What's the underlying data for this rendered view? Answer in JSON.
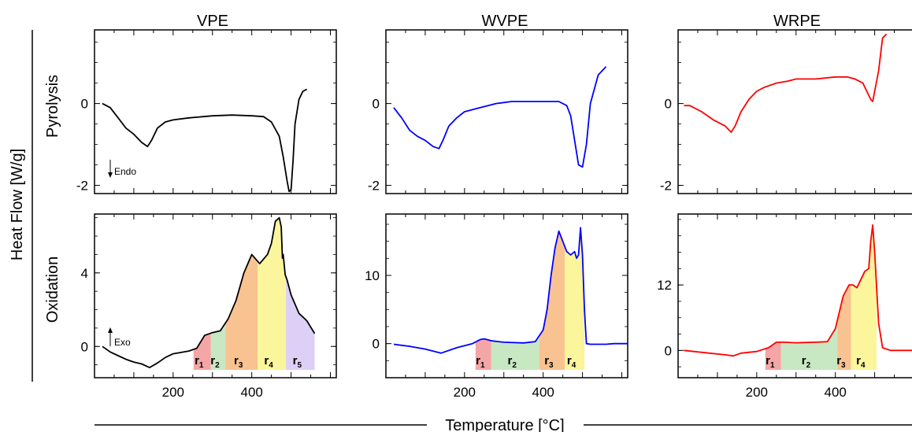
{
  "figure": {
    "ylabel": "Heat Flow [W/g]",
    "xlabel": "Temperature [°C]",
    "row_labels": [
      "Pyrolysis",
      "Oxidation"
    ],
    "col_titles": [
      "VPE",
      "WVPE",
      "WRPE"
    ],
    "endo_note": "Endo",
    "exo_note": "Exo"
  },
  "chart_data": [
    {
      "type": "line",
      "sample": "VPE",
      "mode": "Pyrolysis",
      "color": "#000000",
      "title": "VPE",
      "ylabel": "Pyrolysis",
      "xlim": [
        0,
        615
      ],
      "ylim": [
        -2.2,
        1.8
      ],
      "yticks": [
        0,
        -2
      ],
      "ytick_labels": [
        "0",
        "-2"
      ],
      "x": [
        20,
        40,
        60,
        80,
        100,
        120,
        135,
        145,
        160,
        180,
        200,
        240,
        300,
        350,
        400,
        430,
        450,
        470,
        480,
        490,
        495,
        500,
        505,
        510,
        520,
        530,
        540
      ],
      "y": [
        0,
        -0.1,
        -0.35,
        -0.6,
        -0.75,
        -0.95,
        -1.05,
        -0.9,
        -0.6,
        -0.45,
        -0.4,
        -0.35,
        -0.3,
        -0.28,
        -0.3,
        -0.32,
        -0.45,
        -0.8,
        -1.3,
        -1.9,
        -2.15,
        -2.1,
        -1.4,
        -0.5,
        0.1,
        0.3,
        0.35
      ]
    },
    {
      "type": "line",
      "sample": "VPE",
      "mode": "Oxidation",
      "color": "#000000",
      "title": "",
      "ylabel": "Oxidation",
      "xlim": [
        0,
        615
      ],
      "ylim": [
        -1.7,
        7.2
      ],
      "yticks": [
        0,
        4
      ],
      "ytick_labels": [
        "0",
        "4"
      ],
      "xticks": [
        200,
        400
      ],
      "xtick_labels": [
        "200",
        "400"
      ],
      "x": [
        20,
        40,
        60,
        80,
        100,
        120,
        140,
        160,
        180,
        200,
        240,
        260,
        280,
        300,
        320,
        340,
        360,
        380,
        400,
        420,
        440,
        450,
        460,
        470,
        475,
        478,
        480,
        485,
        490,
        500,
        520,
        540,
        560
      ],
      "y": [
        0,
        -0.3,
        -0.5,
        -0.7,
        -0.85,
        -0.95,
        -1.15,
        -0.9,
        -0.6,
        -0.4,
        -0.25,
        -0.1,
        0.6,
        0.75,
        0.85,
        1.5,
        2.5,
        4.0,
        5.0,
        4.5,
        5.0,
        5.6,
        6.8,
        7.0,
        6.5,
        4.8,
        5.0,
        3.9,
        3.6,
        2.8,
        1.8,
        1.4,
        0.7
      ],
      "regions": [
        {
          "label": "r",
          "sub": "1",
          "x0": 252,
          "x1": 296,
          "color": "#f4a6a6"
        },
        {
          "label": "r",
          "sub": "2",
          "x0": 296,
          "x1": 333,
          "color": "#c7e8c2"
        },
        {
          "label": "r",
          "sub": "3",
          "x0": 333,
          "x1": 415,
          "color": "#f9c291"
        },
        {
          "label": "r",
          "sub": "4",
          "x0": 415,
          "x1": 487,
          "color": "#fbf59c"
        },
        {
          "label": "r",
          "sub": "5",
          "x0": 487,
          "x1": 560,
          "color": "#ddd0f6"
        }
      ]
    },
    {
      "type": "line",
      "sample": "WVPE",
      "mode": "Pyrolysis",
      "color": "#0000ff",
      "title": "WVPE",
      "xlim": [
        0,
        615
      ],
      "ylim": [
        -2.2,
        1.8
      ],
      "yticks": [
        0,
        -2
      ],
      "ytick_labels": [
        "0",
        "-2"
      ],
      "x": [
        20,
        40,
        60,
        80,
        100,
        120,
        135,
        145,
        160,
        180,
        200,
        240,
        280,
        320,
        360,
        400,
        420,
        440,
        460,
        470,
        480,
        490,
        500,
        510,
        520,
        540,
        560
      ],
      "y": [
        -0.1,
        -0.35,
        -0.65,
        -0.8,
        -0.9,
        -1.05,
        -1.1,
        -0.9,
        -0.55,
        -0.35,
        -0.2,
        -0.1,
        0.0,
        0.05,
        0.05,
        0.05,
        0.05,
        0.05,
        -0.05,
        -0.3,
        -0.9,
        -1.5,
        -1.55,
        -1.0,
        0.0,
        0.7,
        0.9
      ]
    },
    {
      "type": "line",
      "sample": "WVPE",
      "mode": "Oxidation",
      "color": "#0000ff",
      "title": "",
      "xlim": [
        0,
        615
      ],
      "ylim": [
        -5,
        19
      ],
      "yticks": [
        0,
        10
      ],
      "ytick_labels": [
        "0",
        "10"
      ],
      "xticks": [
        200,
        400
      ],
      "xtick_labels": [
        "200",
        "400"
      ],
      "x": [
        20,
        60,
        100,
        140,
        180,
        220,
        240,
        250,
        270,
        300,
        350,
        380,
        400,
        410,
        420,
        430,
        440,
        450,
        460,
        470,
        480,
        485,
        490,
        495,
        500,
        505,
        510,
        520,
        540,
        560,
        580,
        615
      ],
      "y": [
        -0.1,
        -0.4,
        -0.8,
        -1.4,
        -0.6,
        0.0,
        0.6,
        0.7,
        0.4,
        0.2,
        0.1,
        0.3,
        2.0,
        5.0,
        10.0,
        14.0,
        16.5,
        15.0,
        13.5,
        13.0,
        13.5,
        12.5,
        13.0,
        17.0,
        13.0,
        5.0,
        0.0,
        -0.1,
        -0.1,
        -0.1,
        0.0,
        0.0
      ],
      "regions": [
        {
          "label": "r",
          "sub": "1",
          "x0": 228,
          "x1": 268,
          "color": "#f4a6a6"
        },
        {
          "label": "r",
          "sub": "2",
          "x0": 268,
          "x1": 390,
          "color": "#c7e8c2"
        },
        {
          "label": "r",
          "sub": "3",
          "x0": 390,
          "x1": 455,
          "color": "#f9c291"
        },
        {
          "label": "r",
          "sub": "4",
          "x0": 455,
          "x1": 505,
          "color": "#fbf59c"
        }
      ]
    },
    {
      "type": "line",
      "sample": "WRPE",
      "mode": "Pyrolysis",
      "color": "#ff0000",
      "title": "WRPE",
      "xlim": [
        0,
        615
      ],
      "ylim": [
        -2.2,
        1.8
      ],
      "yticks": [
        0,
        -2
      ],
      "ytick_labels": [
        "0",
        "-2"
      ],
      "x": [
        15,
        30,
        60,
        90,
        120,
        135,
        145,
        160,
        180,
        200,
        220,
        250,
        280,
        300,
        350,
        400,
        430,
        450,
        470,
        480,
        490,
        495,
        500,
        510,
        520,
        530
      ],
      "y": [
        -0.05,
        -0.05,
        -0.2,
        -0.4,
        -0.55,
        -0.7,
        -0.55,
        -0.2,
        0.1,
        0.3,
        0.4,
        0.5,
        0.55,
        0.6,
        0.6,
        0.65,
        0.65,
        0.6,
        0.5,
        0.3,
        0.1,
        0.05,
        0.3,
        0.8,
        1.6,
        1.7
      ]
    },
    {
      "type": "line",
      "sample": "WRPE",
      "mode": "Oxidation",
      "color": "#ff0000",
      "title": "",
      "xlim": [
        0,
        615
      ],
      "ylim": [
        -5,
        25
      ],
      "yticks": [
        0,
        12
      ],
      "ytick_labels": [
        "0",
        "12"
      ],
      "xticks": [
        200,
        400
      ],
      "xtick_labels": [
        "200",
        "400"
      ],
      "x": [
        15,
        40,
        80,
        120,
        140,
        160,
        200,
        230,
        250,
        270,
        300,
        350,
        380,
        400,
        420,
        435,
        445,
        455,
        465,
        475,
        485,
        490,
        495,
        500,
        510,
        520,
        540,
        560,
        580,
        615
      ],
      "y": [
        0,
        -0.2,
        -0.5,
        -0.8,
        -1.0,
        -0.5,
        -0.2,
        0.5,
        1.5,
        1.5,
        1.4,
        1.5,
        1.6,
        4.0,
        10.0,
        12.0,
        12.0,
        11.5,
        13.0,
        14.5,
        15.0,
        20.0,
        23.0,
        18.0,
        5.0,
        0.5,
        0.0,
        0.0,
        0.0,
        0.0
      ],
      "regions": [
        {
          "label": "r",
          "sub": "1",
          "x0": 222,
          "x1": 262,
          "color": "#f4a6a6"
        },
        {
          "label": "r",
          "sub": "2",
          "x0": 262,
          "x1": 405,
          "color": "#c7e8c2"
        },
        {
          "label": "r",
          "sub": "3",
          "x0": 405,
          "x1": 440,
          "color": "#f9c291"
        },
        {
          "label": "r",
          "sub": "4",
          "x0": 440,
          "x1": 505,
          "color": "#fbf59c"
        }
      ]
    }
  ]
}
